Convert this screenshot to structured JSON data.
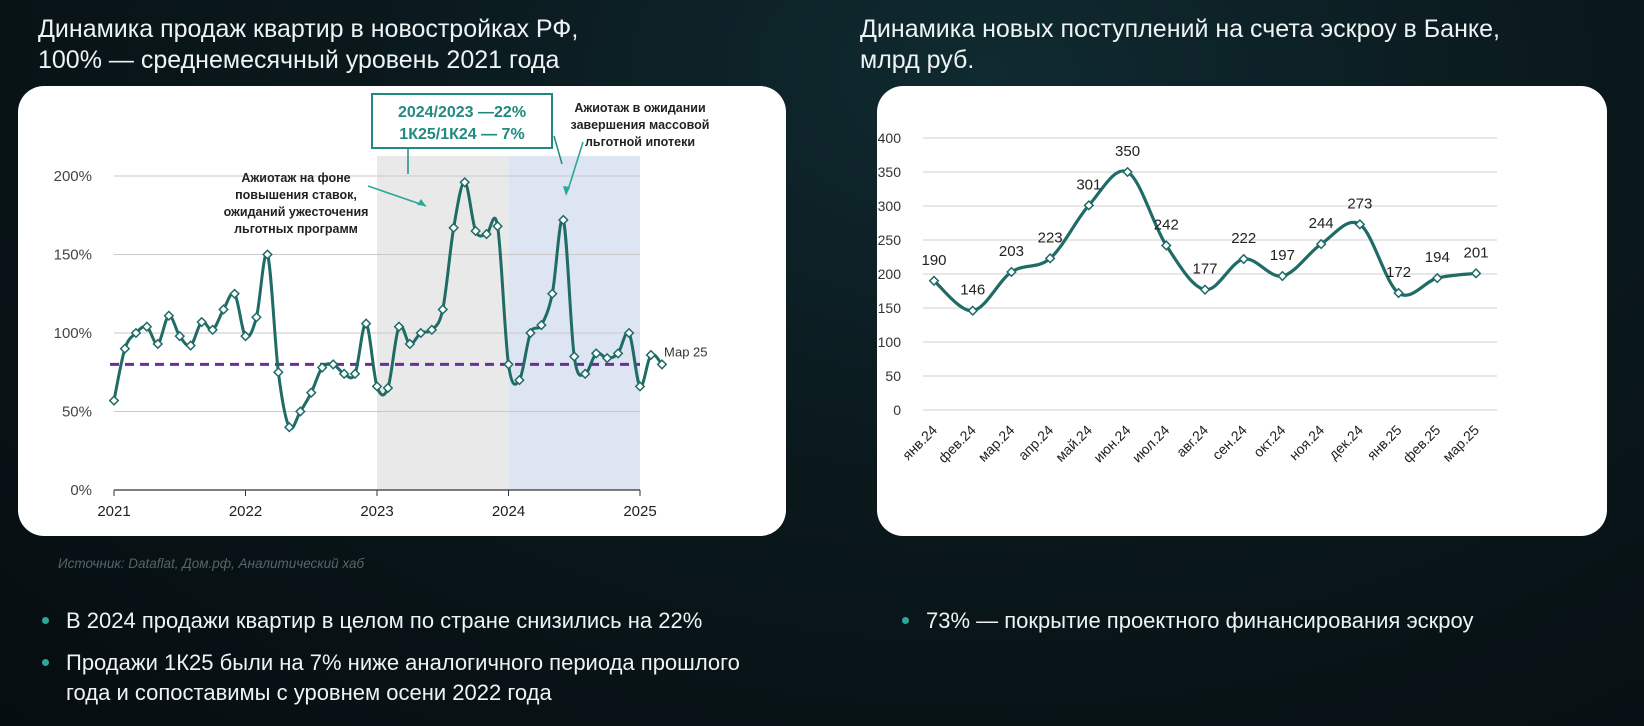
{
  "left": {
    "title_line1": "Динамика продаж квартир в новостройках РФ,",
    "title_line2": "100% — среднемесячный уровень 2021 года",
    "source": "Источник: Dataflat, Дом.рф, Аналитический хаб",
    "bullets": [
      "В 2024 продажи квартир в целом по стране снизились на 22%",
      "Продажи 1К25 были на 7% ниже аналогичного периода прошлого года и сопоставимы с уровнем осени 2022 года"
    ]
  },
  "right": {
    "title_line1": "Динамика новых поступлений на счета эскроу в Банке,",
    "title_line2": "млрд руб.",
    "bullets": [
      "73% — покрытие проектного финансирования эскроу"
    ]
  },
  "colors": {
    "line": "#1f6b66",
    "dashed": "#6a2f9a",
    "shade_gray": "#e9e9ea",
    "shade_blue": "#dde5f3",
    "bullet": "#2aa89a",
    "box_text": "#1f8a80"
  },
  "chart_data": [
    {
      "type": "line",
      "y_ticks": [
        "200%",
        "150%",
        "100%",
        "50%",
        "0%"
      ],
      "x_ticks": [
        "2021",
        "2022",
        "2023",
        "2024",
        "2025"
      ],
      "ylim": [
        0,
        200
      ],
      "reference_line": 80,
      "reference_label": "Мар 25",
      "shaded_ranges": [
        {
          "from": 2023,
          "to": 2024
        },
        {
          "from": 2024,
          "to": 2025
        }
      ],
      "annotations": [
        {
          "lines": [
            "Ажиотаж на фоне",
            "повышения ставок,",
            "ожиданий ужесточения",
            "льготных программ"
          ]
        },
        {
          "lines": [
            "Ажиотаж в ожидании",
            "завершения массовой",
            "льготной ипотеки"
          ]
        }
      ],
      "box_lines": [
        "2024/2023 —22%",
        "1К25/1К24 — 7%"
      ],
      "series": [
        {
          "x": [
            2021.0,
            2021.083,
            2021.167,
            2021.25,
            2021.333,
            2021.417,
            2021.5,
            2021.583,
            2021.667,
            2021.75,
            2021.833,
            2021.917,
            2022.0,
            2022.083,
            2022.167,
            2022.25,
            2022.333,
            2022.417,
            2022.5,
            2022.583,
            2022.667,
            2022.75,
            2022.833,
            2022.917,
            2023.0,
            2023.083,
            2023.167,
            2023.25,
            2023.333,
            2023.417,
            2023.5,
            2023.583,
            2023.667,
            2023.75,
            2023.833,
            2023.917,
            2024.0,
            2024.083,
            2024.167,
            2024.25,
            2024.333,
            2024.417,
            2024.5,
            2024.583,
            2024.667,
            2024.75,
            2024.833,
            2024.917,
            2025.0,
            2025.083,
            2025.167
          ],
          "y": [
            57,
            90,
            100,
            104,
            93,
            111,
            98,
            92,
            107,
            102,
            115,
            125,
            98,
            110,
            150,
            75,
            40,
            50,
            62,
            78,
            80,
            74,
            74,
            106,
            66,
            65,
            104,
            93,
            100,
            102,
            115,
            167,
            196,
            165,
            163,
            168,
            80,
            70,
            100,
            105,
            125,
            172,
            85,
            74,
            87,
            84,
            87,
            100,
            66,
            86,
            80
          ]
        }
      ]
    },
    {
      "type": "line",
      "categories": [
        "янв.24",
        "фев.24",
        "мар.24",
        "апр.24",
        "май.24",
        "июн.24",
        "июл.24",
        "авг.24",
        "сен.24",
        "окт.24",
        "ноя.24",
        "дек.24",
        "янв.25",
        "фев.25",
        "мар.25"
      ],
      "values": [
        190,
        146,
        203,
        223,
        301,
        350,
        242,
        177,
        222,
        197,
        244,
        273,
        172,
        194,
        201
      ],
      "y_ticks": [
        400,
        350,
        300,
        250,
        200,
        150,
        100,
        50,
        0
      ],
      "ylim": [
        0,
        400
      ]
    }
  ]
}
